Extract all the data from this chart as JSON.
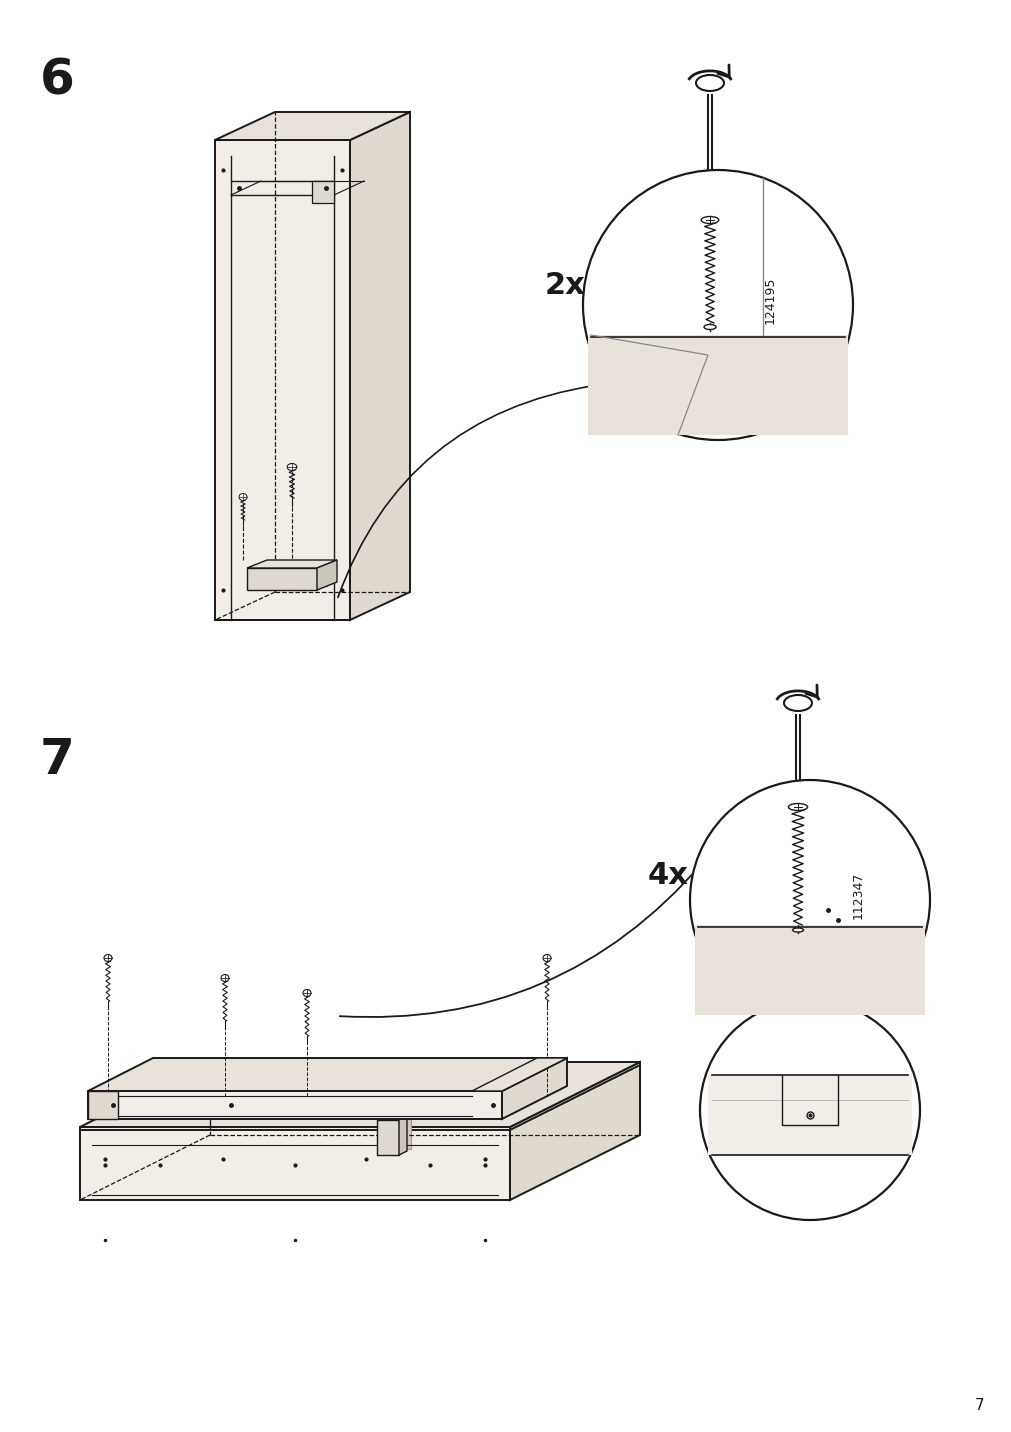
{
  "bg_color": "#ffffff",
  "line_color": "#1a1a1a",
  "step6_label": "6",
  "step7_label": "7",
  "count_2x": "2x",
  "count_4x": "4x",
  "part_num_1": "124195",
  "part_num_2": "112347",
  "page_num": "7",
  "label_fontsize": 36,
  "count_fontsize": 22,
  "partnum_fontsize": 9,
  "page_fontsize": 11,
  "face_light": "#f2ede6",
  "face_mid": "#e0d9d0",
  "face_dark": "#ccc5bc",
  "face_top": "#e8e2da"
}
